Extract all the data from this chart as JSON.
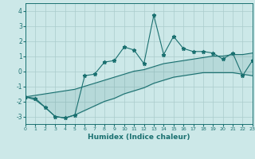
{
  "xlabel": "Humidex (Indice chaleur)",
  "ylabel": "",
  "background_color": "#cce8e8",
  "grid_color": "#aacccc",
  "line_color": "#1a7070",
  "x_data": [
    0,
    1,
    2,
    3,
    4,
    5,
    6,
    7,
    8,
    9,
    10,
    11,
    12,
    13,
    14,
    15,
    16,
    17,
    18,
    19,
    20,
    21,
    22,
    23
  ],
  "y_main": [
    -1.7,
    -1.8,
    -2.4,
    -3.0,
    -3.1,
    -2.9,
    -0.3,
    -0.2,
    0.6,
    0.7,
    1.6,
    1.4,
    0.5,
    3.7,
    1.1,
    2.3,
    1.5,
    1.3,
    1.3,
    1.2,
    0.8,
    1.2,
    -0.3,
    0.7
  ],
  "y_upper": [
    -1.7,
    -1.6,
    -1.5,
    -1.4,
    -1.3,
    -1.2,
    -1.0,
    -0.8,
    -0.6,
    -0.4,
    -0.2,
    0.0,
    0.1,
    0.3,
    0.5,
    0.6,
    0.7,
    0.8,
    0.9,
    1.0,
    1.0,
    1.1,
    1.1,
    1.2
  ],
  "y_lower": [
    -1.7,
    -1.9,
    -2.4,
    -3.0,
    -3.1,
    -2.9,
    -2.6,
    -2.3,
    -2.0,
    -1.8,
    -1.5,
    -1.3,
    -1.1,
    -0.8,
    -0.6,
    -0.4,
    -0.3,
    -0.2,
    -0.1,
    -0.1,
    -0.1,
    -0.1,
    -0.2,
    -0.3
  ],
  "xlim": [
    0,
    23
  ],
  "ylim": [
    -3.5,
    4.5
  ],
  "yticks": [
    -3,
    -2,
    -1,
    0,
    1,
    2,
    3,
    4
  ],
  "xticks": [
    0,
    1,
    2,
    3,
    4,
    5,
    6,
    7,
    8,
    9,
    10,
    11,
    12,
    13,
    14,
    15,
    16,
    17,
    18,
    19,
    20,
    21,
    22,
    23
  ],
  "marker": "*",
  "markersize": 3.5,
  "linewidth": 0.8,
  "fill_color": "#1a7070",
  "fill_alpha": 0.12
}
